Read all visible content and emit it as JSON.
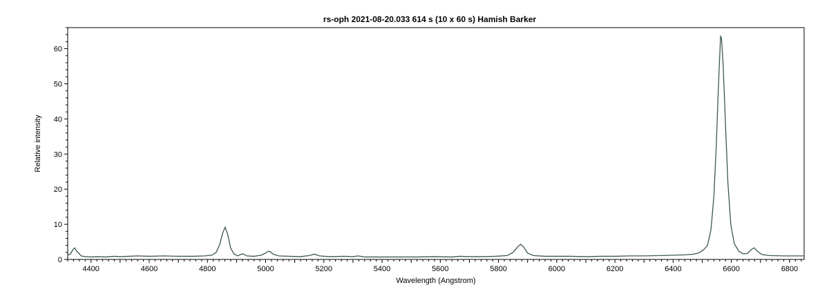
{
  "chart_data": {
    "type": "line",
    "title": "rs-oph   2021-08-20.033   614 s (10 x 60 s)   Hamish Barker",
    "xlabel": "Wavelength (Angstrom)",
    "ylabel": "Relative intensity",
    "xlim": [
      4320,
      6850
    ],
    "ylim": [
      0,
      66
    ],
    "x_ticks": [
      4400,
      4600,
      4800,
      5000,
      5200,
      5400,
      5600,
      5800,
      6000,
      6200,
      6400,
      6600,
      6800
    ],
    "y_ticks": [
      0,
      10,
      20,
      30,
      40,
      50,
      60
    ],
    "grid": false,
    "legend": "none",
    "line_color": "#3c5552",
    "series": [
      {
        "values_description_free": true,
        "points": [
          [
            4320,
            1.2
          ],
          [
            4330,
            1.6
          ],
          [
            4338,
            2.8
          ],
          [
            4344,
            3.3
          ],
          [
            4350,
            2.4
          ],
          [
            4358,
            1.8
          ],
          [
            4366,
            1.0
          ],
          [
            4380,
            0.8
          ],
          [
            4400,
            0.7
          ],
          [
            4420,
            0.8
          ],
          [
            4450,
            0.7
          ],
          [
            4480,
            0.9
          ],
          [
            4500,
            0.8
          ],
          [
            4530,
            0.9
          ],
          [
            4560,
            1.0
          ],
          [
            4600,
            0.9
          ],
          [
            4650,
            1.0
          ],
          [
            4700,
            0.9
          ],
          [
            4750,
            0.9
          ],
          [
            4790,
            1.0
          ],
          [
            4815,
            1.2
          ],
          [
            4830,
            2.0
          ],
          [
            4842,
            4.2
          ],
          [
            4852,
            7.4
          ],
          [
            4861,
            9.2
          ],
          [
            4870,
            7.0
          ],
          [
            4880,
            3.2
          ],
          [
            4892,
            1.5
          ],
          [
            4905,
            1.0
          ],
          [
            4913,
            1.4
          ],
          [
            4922,
            1.6
          ],
          [
            4935,
            1.0
          ],
          [
            4960,
            0.9
          ],
          [
            4985,
            1.2
          ],
          [
            5000,
            1.8
          ],
          [
            5008,
            2.3
          ],
          [
            5016,
            2.2
          ],
          [
            5026,
            1.5
          ],
          [
            5045,
            1.0
          ],
          [
            5080,
            0.9
          ],
          [
            5120,
            0.8
          ],
          [
            5150,
            1.1
          ],
          [
            5168,
            1.5
          ],
          [
            5185,
            1.0
          ],
          [
            5220,
            0.8
          ],
          [
            5270,
            0.9
          ],
          [
            5300,
            0.8
          ],
          [
            5318,
            1.0
          ],
          [
            5340,
            0.7
          ],
          [
            5400,
            0.7
          ],
          [
            5460,
            0.7
          ],
          [
            5520,
            0.7
          ],
          [
            5580,
            0.8
          ],
          [
            5640,
            0.7
          ],
          [
            5668,
            0.9
          ],
          [
            5700,
            0.8
          ],
          [
            5740,
            0.8
          ],
          [
            5790,
            0.9
          ],
          [
            5830,
            1.1
          ],
          [
            5850,
            2.0
          ],
          [
            5866,
            3.6
          ],
          [
            5876,
            4.3
          ],
          [
            5886,
            3.6
          ],
          [
            5900,
            1.8
          ],
          [
            5920,
            1.1
          ],
          [
            5960,
            0.9
          ],
          [
            6000,
            0.9
          ],
          [
            6050,
            0.9
          ],
          [
            6100,
            0.8
          ],
          [
            6150,
            0.9
          ],
          [
            6200,
            0.9
          ],
          [
            6250,
            1.0
          ],
          [
            6300,
            1.0
          ],
          [
            6360,
            1.1
          ],
          [
            6400,
            1.2
          ],
          [
            6440,
            1.3
          ],
          [
            6470,
            1.5
          ],
          [
            6490,
            1.9
          ],
          [
            6505,
            2.8
          ],
          [
            6518,
            4.0
          ],
          [
            6530,
            8.5
          ],
          [
            6540,
            18.0
          ],
          [
            6548,
            32.0
          ],
          [
            6555,
            48.0
          ],
          [
            6560,
            58.0
          ],
          [
            6563,
            63.5
          ],
          [
            6566,
            63.0
          ],
          [
            6572,
            55.0
          ],
          [
            6580,
            38.0
          ],
          [
            6588,
            22.0
          ],
          [
            6598,
            10.0
          ],
          [
            6610,
            4.5
          ],
          [
            6625,
            2.4
          ],
          [
            6640,
            1.6
          ],
          [
            6655,
            1.7
          ],
          [
            6668,
            2.8
          ],
          [
            6678,
            3.3
          ],
          [
            6690,
            2.3
          ],
          [
            6705,
            1.4
          ],
          [
            6730,
            1.1
          ],
          [
            6780,
            1.0
          ],
          [
            6850,
            1.0
          ]
        ]
      }
    ]
  }
}
